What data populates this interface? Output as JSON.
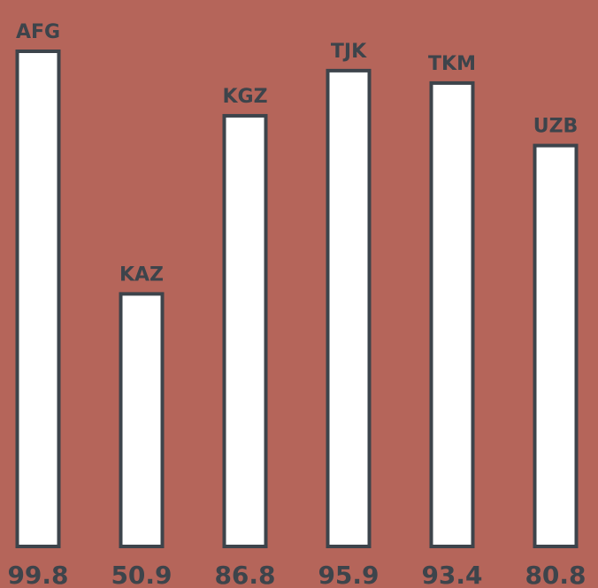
{
  "colors": {
    "background": "#b5655a",
    "bar_fill": "#ffffff",
    "bar_stroke": "#3d444b",
    "text": "#3d444b"
  },
  "chart_data": {
    "type": "bar",
    "categories": [
      "AFG",
      "KAZ",
      "KGZ",
      "TJK",
      "TKM",
      "UZB"
    ],
    "values": [
      99.8,
      50.9,
      86.8,
      95.9,
      93.4,
      80.8
    ],
    "value_labels": [
      "99.8",
      "50.9",
      "86.8",
      "95.9",
      "93.4",
      "80.8"
    ],
    "title": "",
    "xlabel": "",
    "ylabel": "",
    "ylim": [
      0,
      99.8
    ],
    "grid": false,
    "legend": "none"
  }
}
